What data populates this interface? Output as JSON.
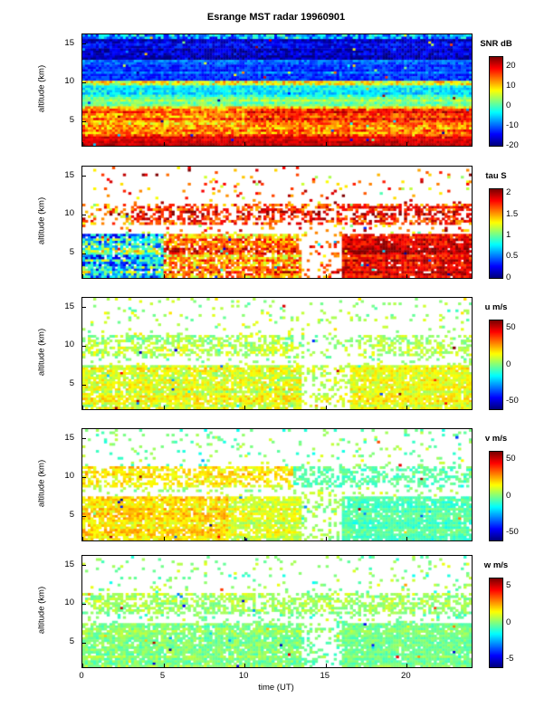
{
  "chart_data": {
    "type": "heatmap",
    "title": "Esrange MST radar 19960901",
    "xlabel": "time (UT)",
    "ylabel": "altitude (km)",
    "xlim": [
      0,
      24
    ],
    "ylim": [
      1.8,
      16.2
    ],
    "x_ticks": [
      0,
      5,
      10,
      15,
      20
    ],
    "y_ticks": [
      5,
      10,
      15
    ],
    "colormap": "jet",
    "missing_data_color": "#ffffff",
    "panels": [
      {
        "id": "snr",
        "cbar_title": "SNR dB",
        "clim": [
          -20,
          25
        ],
        "cbar_ticks": [
          20,
          10,
          0,
          -10,
          -20
        ],
        "regions": [
          {
            "t": [
              0,
              24
            ],
            "a": [
              1.8,
              16.2
            ],
            "v": -15,
            "n": 4,
            "cov": 1
          },
          {
            "t": [
              0,
              24
            ],
            "a": [
              13,
              16.2
            ],
            "v": -16,
            "n": 5,
            "cov": 1
          },
          {
            "t": [
              0,
              24
            ],
            "a": [
              10.2,
              13
            ],
            "v": -11,
            "n": 4,
            "cov": 1
          },
          {
            "t": [
              0,
              24
            ],
            "a": [
              9.5,
              10.2
            ],
            "v": 8,
            "n": 8,
            "cov": 1
          },
          {
            "t": [
              0,
              24
            ],
            "a": [
              8.2,
              9.5
            ],
            "v": -3,
            "n": 5,
            "cov": 1
          },
          {
            "t": [
              0,
              24
            ],
            "a": [
              7.0,
              8.2
            ],
            "v": 3,
            "n": 4,
            "cov": 1
          },
          {
            "t": [
              0,
              24
            ],
            "a": [
              3.0,
              7.0
            ],
            "v": 13,
            "n": 7,
            "cov": 1
          },
          {
            "t": [
              10,
              24
            ],
            "a": [
              4.5,
              6.5
            ],
            "v": 17,
            "n": 6,
            "cov": 1
          },
          {
            "t": [
              0,
              24
            ],
            "a": [
              1.8,
              3.0
            ],
            "v": 21,
            "n": 3,
            "cov": 1
          },
          {
            "t": [
              0,
              24
            ],
            "a": [
              15.6,
              16.2
            ],
            "v": -8,
            "n": 10,
            "cov": 1
          }
        ]
      },
      {
        "id": "tau",
        "cbar_title": "tau S",
        "clim": [
          0,
          2.1
        ],
        "cbar_ticks": [
          2,
          1.5,
          1,
          0.5,
          0
        ],
        "regions": [
          {
            "t": [
              0,
              5
            ],
            "a": [
              1.8,
              7.5
            ],
            "v": 0.8,
            "n": 0.6,
            "cov": 0.92
          },
          {
            "t": [
              5,
              13.5
            ],
            "a": [
              1.8,
              7.5
            ],
            "v": 1.6,
            "n": 0.4,
            "cov": 0.85
          },
          {
            "t": [
              13.5,
              16
            ],
            "a": [
              1.8,
              7.5
            ],
            "v": 1.7,
            "n": 0.3,
            "cov": 0.15
          },
          {
            "t": [
              16,
              24
            ],
            "a": [
              1.8,
              7.5
            ],
            "v": 1.9,
            "n": 0.25,
            "cov": 0.95
          },
          {
            "t": [
              0,
              24
            ],
            "a": [
              7.5,
              8.7
            ],
            "v": 1.5,
            "n": 0.5,
            "cov": 0.12
          },
          {
            "t": [
              0,
              24
            ],
            "a": [
              8.7,
              11.3
            ],
            "v": 1.8,
            "n": 0.35,
            "cov": 0.5
          },
          {
            "t": [
              0,
              3
            ],
            "a": [
              8.7,
              11.3
            ],
            "v": 1.6,
            "n": 0.5,
            "cov": 0.25
          },
          {
            "t": [
              0,
              24
            ],
            "a": [
              11.3,
              16.2
            ],
            "v": 1.6,
            "n": 0.5,
            "cov": 0.06
          },
          {
            "t": [
              16,
              24
            ],
            "a": [
              10.7,
              11.2
            ],
            "v": 1.9,
            "n": 0.2,
            "cov": 0.85
          }
        ]
      },
      {
        "id": "u",
        "cbar_title": "u m/s",
        "clim": [
          -60,
          60
        ],
        "cbar_ticks": [
          50,
          0,
          -50
        ],
        "regions": [
          {
            "t": [
              0,
              13.5
            ],
            "a": [
              1.8,
              7.5
            ],
            "v": 10,
            "n": 12,
            "cov": 0.88
          },
          {
            "t": [
              13.5,
              16.5
            ],
            "a": [
              1.8,
              7.5
            ],
            "v": 8,
            "n": 10,
            "cov": 0.3
          },
          {
            "t": [
              16.5,
              24
            ],
            "a": [
              1.8,
              7.5
            ],
            "v": 12,
            "n": 10,
            "cov": 0.9
          },
          {
            "t": [
              0,
              24
            ],
            "a": [
              7.5,
              8.7
            ],
            "v": 5,
            "n": 10,
            "cov": 0.15
          },
          {
            "t": [
              0,
              13
            ],
            "a": [
              8.7,
              11.3
            ],
            "v": 8,
            "n": 12,
            "cov": 0.55
          },
          {
            "t": [
              13,
              17
            ],
            "a": [
              8.7,
              11.3
            ],
            "v": 5,
            "n": 10,
            "cov": 0.2
          },
          {
            "t": [
              17,
              24
            ],
            "a": [
              8.7,
              11.3
            ],
            "v": 8,
            "n": 10,
            "cov": 0.5
          },
          {
            "t": [
              0,
              24
            ],
            "a": [
              11.3,
              16.2
            ],
            "v": 5,
            "n": 12,
            "cov": 0.08
          }
        ]
      },
      {
        "id": "v",
        "cbar_title": "v m/s",
        "clim": [
          -60,
          60
        ],
        "cbar_ticks": [
          50,
          0,
          -50
        ],
        "regions": [
          {
            "t": [
              0,
              9
            ],
            "a": [
              1.8,
              7.5
            ],
            "v": 18,
            "n": 10,
            "cov": 0.88
          },
          {
            "t": [
              9,
              13.5
            ],
            "a": [
              1.8,
              7.5
            ],
            "v": 10,
            "n": 9,
            "cov": 0.85
          },
          {
            "t": [
              13.5,
              16
            ],
            "a": [
              1.8,
              7.5
            ],
            "v": 3,
            "n": 8,
            "cov": 0.3
          },
          {
            "t": [
              16,
              24
            ],
            "a": [
              1.8,
              7.5
            ],
            "v": -6,
            "n": 7,
            "cov": 0.9
          },
          {
            "t": [
              0,
              24
            ],
            "a": [
              7.5,
              8.7
            ],
            "v": 5,
            "n": 9,
            "cov": 0.15
          },
          {
            "t": [
              0,
              13
            ],
            "a": [
              8.7,
              11.3
            ],
            "v": 16,
            "n": 10,
            "cov": 0.6
          },
          {
            "t": [
              13,
              24
            ],
            "a": [
              8.7,
              11.3
            ],
            "v": -5,
            "n": 8,
            "cov": 0.45
          },
          {
            "t": [
              0,
              24
            ],
            "a": [
              11.3,
              16.2
            ],
            "v": 0,
            "n": 12,
            "cov": 0.08
          }
        ]
      },
      {
        "id": "w",
        "cbar_title": "w m/s",
        "clim": [
          -6,
          6
        ],
        "cbar_ticks": [
          5,
          0,
          -5
        ],
        "regions": [
          {
            "t": [
              0,
              13.5
            ],
            "a": [
              1.8,
              7.5
            ],
            "v": 0.2,
            "n": 0.9,
            "cov": 0.88
          },
          {
            "t": [
              13.5,
              16
            ],
            "a": [
              1.8,
              7.5
            ],
            "v": 0,
            "n": 0.8,
            "cov": 0.3
          },
          {
            "t": [
              16,
              24
            ],
            "a": [
              1.8,
              7.5
            ],
            "v": 0,
            "n": 0.7,
            "cov": 0.92
          },
          {
            "t": [
              0,
              24
            ],
            "a": [
              7.5,
              8.7
            ],
            "v": 0,
            "n": 1,
            "cov": 0.15
          },
          {
            "t": [
              0,
              24
            ],
            "a": [
              8.7,
              11.3
            ],
            "v": 0.3,
            "n": 0.9,
            "cov": 0.55
          },
          {
            "t": [
              0,
              24
            ],
            "a": [
              11.3,
              16.2
            ],
            "v": 0,
            "n": 1.2,
            "cov": 0.08
          }
        ]
      }
    ]
  }
}
